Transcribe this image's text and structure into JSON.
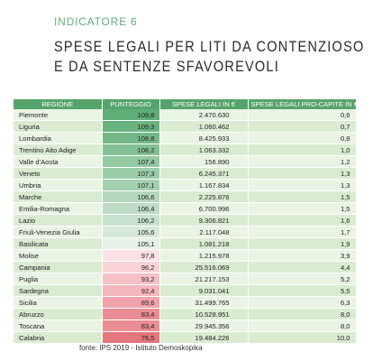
{
  "header": {
    "indicator": "INDICATORE 6",
    "title_line1": "SPESE LEGALI PER LITI DA CONTENZIOSO",
    "title_line2": "E DA SENTENZE SFAVOREVOLI"
  },
  "colors": {
    "header_green": "#55a36b",
    "accent_green": "#5fae78",
    "row_light": "#e9f4e3",
    "row_dark": "#d9ecd2"
  },
  "table": {
    "columns": [
      "REGIONE",
      "PUNTEGGIO",
      "SPESE LEGALI IN €",
      "SPESE LEGALI PRO-CAPITE IN €"
    ],
    "rows": [
      {
        "region": "Piemonte",
        "score": "109,8",
        "spend": "2.470.630",
        "percap": "0,6",
        "score_color": "#5fae78"
      },
      {
        "region": "Liguria",
        "score": "109,3",
        "spend": "1.060.462",
        "percap": "0,7",
        "score_color": "#69b380"
      },
      {
        "region": "Lombardia",
        "score": "108,8",
        "spend": "8.425.933",
        "percap": "0,8",
        "score_color": "#74b889"
      },
      {
        "region": "Trentino Alto Adige",
        "score": "108,2",
        "spend": "1.063.332",
        "percap": "1,0",
        "score_color": "#82bf94"
      },
      {
        "region": "Valle d'Aosta",
        "score": "107,4",
        "spend": "156.890",
        "percap": "1,2",
        "score_color": "#92c8a2"
      },
      {
        "region": "Veneto",
        "score": "107,3",
        "spend": "6.245.371",
        "percap": "1,3",
        "score_color": "#9acca8"
      },
      {
        "region": "Umbria",
        "score": "107,1",
        "spend": "1.167.834",
        "percap": "1,3",
        "score_color": "#a3d0af"
      },
      {
        "region": "Marche",
        "score": "106,6",
        "spend": "2.225.876",
        "percap": "1,5",
        "score_color": "#b3d8bc"
      },
      {
        "region": "Emilia-Romagna",
        "score": "106,4",
        "spend": "6.700.996",
        "percap": "1,5",
        "score_color": "#bcdcc4"
      },
      {
        "region": "Lazio",
        "score": "106,2",
        "spend": "9.306.821",
        "percap": "1,6",
        "score_color": "#c6e1cc"
      },
      {
        "region": "Friuli-Venezia Giulia",
        "score": "105,6",
        "spend": "2.117.048",
        "percap": "1,7",
        "score_color": "#d6e9d9"
      },
      {
        "region": "Basilicata",
        "score": "105,1",
        "spend": "1.081.218",
        "percap": "1,9",
        "score_color": "#e5f1e6"
      },
      {
        "region": "Molise",
        "score": "97,8",
        "spend": "1.215.978",
        "percap": "3,9",
        "score_color": "#fbe1e3"
      },
      {
        "region": "Campania",
        "score": "96,2",
        "spend": "25.516.069",
        "percap": "4,4",
        "score_color": "#f9d3d6"
      },
      {
        "region": "Puglia",
        "score": "93,2",
        "spend": "21.217.153",
        "percap": "5,2",
        "score_color": "#f6c0c5"
      },
      {
        "region": "Sardegna",
        "score": "92,4",
        "spend": "9.031.041",
        "percap": "5,5",
        "score_color": "#f4b7bc"
      },
      {
        "region": "Sicilia",
        "score": "89,6",
        "spend": "31.499.765",
        "percap": "6,3",
        "score_color": "#f0a3aa"
      },
      {
        "region": "Abruzzo",
        "score": "83,4",
        "spend": "10.528.951",
        "percap": "8,0",
        "score_color": "#ea8d95"
      },
      {
        "region": "Toscana",
        "score": "83,4",
        "spend": "29.945.356",
        "percap": "8,0",
        "score_color": "#ea8d95"
      },
      {
        "region": "Calabria",
        "score": "76,5",
        "spend": "19.484.226",
        "percap": "10,0",
        "score_color": "#e4767f"
      }
    ]
  },
  "footer": {
    "source": "fonte: IPS 2019 - Istituto Demoskopika"
  }
}
